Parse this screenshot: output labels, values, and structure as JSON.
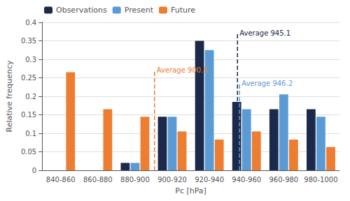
{
  "chart_data": {
    "type": "bar",
    "categories": [
      "840-860",
      "860-880",
      "880-900",
      "900-920",
      "920-940",
      "940-960",
      "960-980",
      "980-1000"
    ],
    "series": [
      {
        "name": "Observations",
        "color": "#1b2a4a",
        "values": [
          0.0,
          0.0,
          0.02,
          0.145,
          0.35,
          0.185,
          0.165,
          0.165
        ]
      },
      {
        "name": "Present",
        "color": "#5b9bd5",
        "values": [
          0.0,
          0.0,
          0.02,
          0.145,
          0.325,
          0.165,
          0.205,
          0.145
        ]
      },
      {
        "name": "Future",
        "color": "#ed7d31",
        "values": [
          0.265,
          0.165,
          0.145,
          0.105,
          0.083,
          0.105,
          0.083,
          0.063
        ]
      }
    ],
    "xlabel": "Pc [hPa]",
    "ylabel": "Relative frequency",
    "ylim": [
      0,
      0.4
    ],
    "yticks": [
      0,
      0.05,
      0.1,
      0.15,
      0.2,
      0.25,
      0.3,
      0.35,
      0.4
    ],
    "xlim": [
      840,
      1000
    ],
    "grid": true,
    "legend": "upper left",
    "annotations": [
      {
        "text": "Average 900.5",
        "x": 900.5,
        "y": 0.27,
        "color": "#ed7d31",
        "line_style": "dashed"
      },
      {
        "text": "Average 945.1",
        "x": 945.1,
        "y": 0.37,
        "color": "#1b2a4a",
        "line_style": "dashed"
      },
      {
        "text": "Average 946.2",
        "x": 946.2,
        "y": 0.235,
        "color": "#5b9bd5",
        "line_style": "dashed"
      }
    ]
  }
}
